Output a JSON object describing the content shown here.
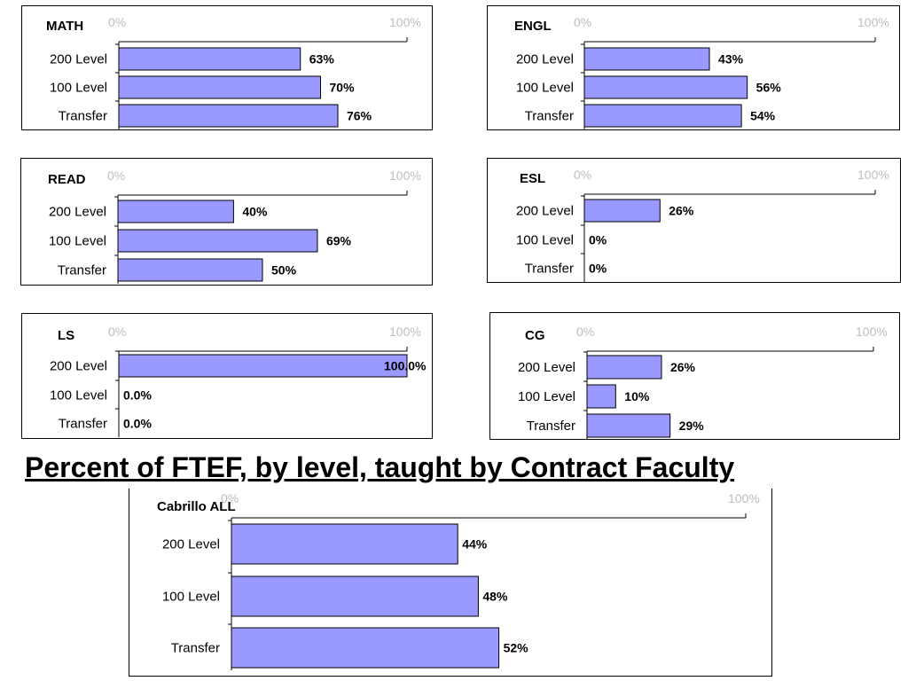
{
  "title": "Percent of FTEF, by level, taught by Contract Faculty",
  "colors": {
    "bar_fill": "#9999ff",
    "bar_stroke": "#000000",
    "tick_label": "#bdbdbd"
  },
  "chart_data": [
    {
      "type": "bar",
      "orientation": "horizontal",
      "title": "MATH",
      "xlim": [
        0,
        100
      ],
      "tick_labels": [
        "0%",
        "100%"
      ],
      "categories": [
        "200 Level",
        "100 Level",
        "Transfer"
      ],
      "values": [
        63,
        70,
        76
      ],
      "value_labels": [
        "63%",
        "70%",
        "76%"
      ]
    },
    {
      "type": "bar",
      "orientation": "horizontal",
      "title": "ENGL",
      "xlim": [
        0,
        100
      ],
      "tick_labels": [
        "0%",
        "100%"
      ],
      "categories": [
        "200 Level",
        "100 Level",
        "Transfer"
      ],
      "values": [
        43,
        56,
        54
      ],
      "value_labels": [
        "43%",
        "56%",
        "54%"
      ]
    },
    {
      "type": "bar",
      "orientation": "horizontal",
      "title": "READ",
      "xlim": [
        0,
        100
      ],
      "tick_labels": [
        "0%",
        "100%"
      ],
      "categories": [
        "200 Level",
        "100 Level",
        "Transfer"
      ],
      "values": [
        40,
        69,
        50
      ],
      "value_labels": [
        "40%",
        "69%",
        "50%"
      ]
    },
    {
      "type": "bar",
      "orientation": "horizontal",
      "title": "ESL",
      "xlim": [
        0,
        100
      ],
      "tick_labels": [
        "0%",
        "100%"
      ],
      "categories": [
        "200 Level",
        "100 Level",
        "Transfer"
      ],
      "values": [
        26,
        0,
        0
      ],
      "value_labels": [
        "26%",
        "0%",
        "0%"
      ]
    },
    {
      "type": "bar",
      "orientation": "horizontal",
      "title": "LS",
      "xlim": [
        0,
        100
      ],
      "tick_labels": [
        "0%",
        "100%"
      ],
      "categories": [
        "200 Level",
        "100 Level",
        "Transfer"
      ],
      "values": [
        100,
        0,
        0
      ],
      "value_labels": [
        "100.0%",
        "0.0%",
        "0.0%"
      ]
    },
    {
      "type": "bar",
      "orientation": "horizontal",
      "title": "CG",
      "xlim": [
        0,
        100
      ],
      "tick_labels": [
        "0%",
        "100%"
      ],
      "categories": [
        "200 Level",
        "100 Level",
        "Transfer"
      ],
      "values": [
        26,
        10,
        29
      ],
      "value_labels": [
        "26%",
        "10%",
        "29%"
      ]
    },
    {
      "type": "bar",
      "orientation": "horizontal",
      "title": "Cabrillo ALL",
      "xlim": [
        0,
        100
      ],
      "tick_labels": [
        "0%",
        "100%"
      ],
      "categories": [
        "200 Level",
        "100 Level",
        "Transfer"
      ],
      "values": [
        44,
        48,
        52
      ],
      "value_labels": [
        "44%",
        "48%",
        "52%"
      ]
    }
  ]
}
